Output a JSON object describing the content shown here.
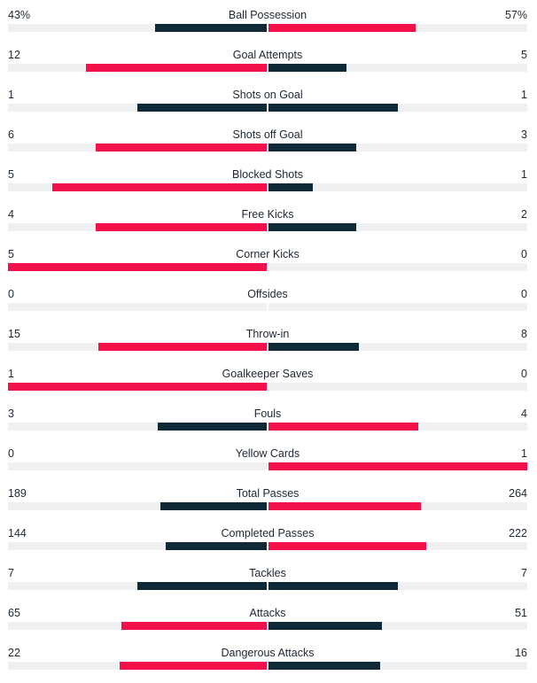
{
  "colors": {
    "leader": "#f4104a",
    "other": "#0f2a36",
    "track": "#eef0f2"
  },
  "stats": [
    {
      "name": "Ball Possession",
      "home": "43%",
      "away": "57%",
      "home_share": 0.43,
      "away_share": 0.57
    },
    {
      "name": "Goal Attempts",
      "home": "12",
      "away": "5",
      "home_share": 0.7,
      "away_share": 0.3
    },
    {
      "name": "Shots on Goal",
      "home": "1",
      "away": "1",
      "home_share": 0.5,
      "away_share": 0.5
    },
    {
      "name": "Shots off Goal",
      "home": "6",
      "away": "3",
      "home_share": 0.66,
      "away_share": 0.34
    },
    {
      "name": "Blocked Shots",
      "home": "5",
      "away": "1",
      "home_share": 0.83,
      "away_share": 0.17
    },
    {
      "name": "Free Kicks",
      "home": "4",
      "away": "2",
      "home_share": 0.66,
      "away_share": 0.34
    },
    {
      "name": "Corner Kicks",
      "home": "5",
      "away": "0",
      "home_share": 1.0,
      "away_share": 0.0
    },
    {
      "name": "Offsides",
      "home": "0",
      "away": "0",
      "home_share": 0.0,
      "away_share": 0.0
    },
    {
      "name": "Throw-in",
      "home": "15",
      "away": "8",
      "home_share": 0.65,
      "away_share": 0.35
    },
    {
      "name": "Goalkeeper Saves",
      "home": "1",
      "away": "0",
      "home_share": 1.0,
      "away_share": 0.0
    },
    {
      "name": "Fouls",
      "home": "3",
      "away": "4",
      "home_share": 0.42,
      "away_share": 0.58
    },
    {
      "name": "Yellow Cards",
      "home": "0",
      "away": "1",
      "home_share": 0.0,
      "away_share": 1.0
    },
    {
      "name": "Total Passes",
      "home": "189",
      "away": "264",
      "home_share": 0.41,
      "away_share": 0.59
    },
    {
      "name": "Completed Passes",
      "home": "144",
      "away": "222",
      "home_share": 0.39,
      "away_share": 0.61
    },
    {
      "name": "Tackles",
      "home": "7",
      "away": "7",
      "home_share": 0.5,
      "away_share": 0.5
    },
    {
      "name": "Attacks",
      "home": "65",
      "away": "51",
      "home_share": 0.56,
      "away_share": 0.44
    },
    {
      "name": "Dangerous Attacks",
      "home": "22",
      "away": "16",
      "home_share": 0.57,
      "away_share": 0.43
    }
  ]
}
